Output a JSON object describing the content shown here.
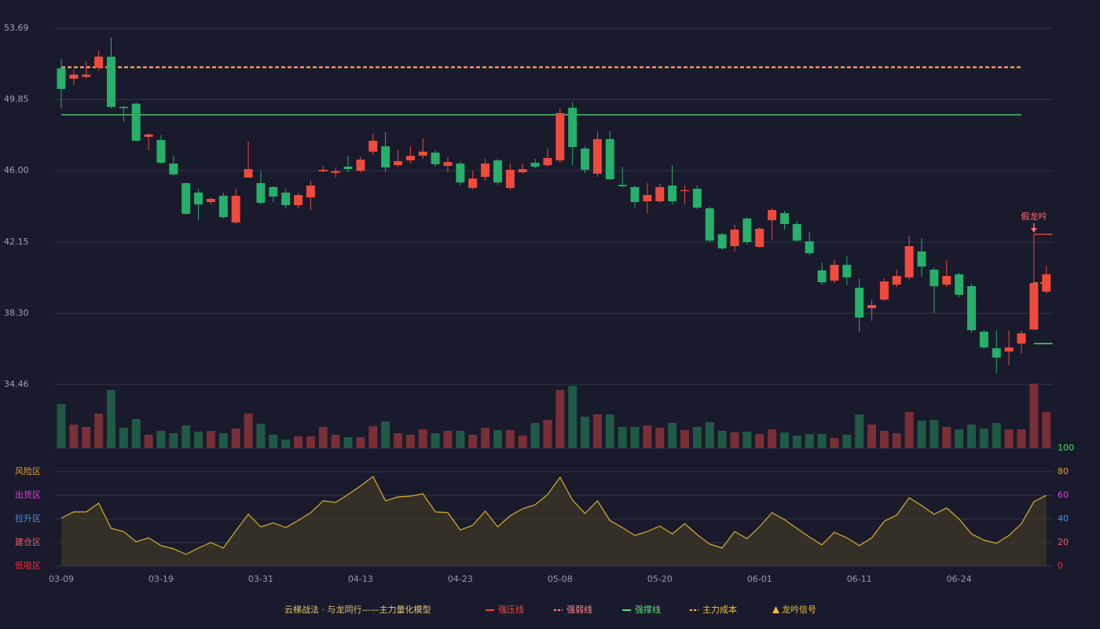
{
  "chart_data": {
    "type": "candlestick",
    "categories": [
      "03-09",
      null,
      null,
      null,
      null,
      null,
      null,
      null,
      "03-19",
      null,
      null,
      null,
      null,
      null,
      null,
      null,
      "03-31",
      null,
      null,
      null,
      null,
      null,
      null,
      null,
      "04-13",
      null,
      null,
      null,
      null,
      null,
      null,
      null,
      "04-23",
      null,
      null,
      null,
      null,
      null,
      null,
      null,
      "05-08",
      null,
      null,
      null,
      null,
      null,
      null,
      null,
      "05-20",
      null,
      null,
      null,
      null,
      null,
      null,
      null,
      "06-01",
      null,
      null,
      null,
      null,
      null,
      null,
      null,
      "06-11",
      null,
      null,
      null,
      null,
      null,
      null,
      null,
      "06-24",
      null,
      null,
      null,
      null,
      null,
      null,
      null
    ],
    "open": [
      51.53,
      50.97,
      51.07,
      51.57,
      52.16,
      49.45,
      49.62,
      47.83,
      47.66,
      46.39,
      45.33,
      44.82,
      44.31,
      44.65,
      43.21,
      45.63,
      45.33,
      45.12,
      44.82,
      44.14,
      44.56,
      45.97,
      45.88,
      46.22,
      46.0,
      47.03,
      47.32,
      46.3,
      46.56,
      46.81,
      46.98,
      46.26,
      46.39,
      45.07,
      45.67,
      46.56,
      45.07,
      45.92,
      46.43,
      46.3,
      46.56,
      49.4,
      47.2,
      45.84,
      47.71,
      45.24,
      45.12,
      44.35,
      44.35,
      45.2,
      44.9,
      45.03,
      43.97,
      42.57,
      41.93,
      43.42,
      41.89,
      43.33,
      43.71,
      43.12,
      42.19,
      40.62,
      40.07,
      40.92,
      39.68,
      38.58,
      39.04,
      39.85,
      40.24,
      41.64,
      40.66,
      39.85,
      40.41,
      39.77,
      37.31,
      36.42,
      36.24,
      36.67,
      37.43,
      39.47
    ],
    "high": [
      52.03,
      51.48,
      51.91,
      52.5,
      53.18,
      49.49,
      49.7,
      48.04,
      47.92,
      46.81,
      45.37,
      45.03,
      44.56,
      44.82,
      45.03,
      47.58,
      45.97,
      45.16,
      45.03,
      44.82,
      45.46,
      46.26,
      46.18,
      46.81,
      46.77,
      48.0,
      48.09,
      47.11,
      47.32,
      47.75,
      47.11,
      46.73,
      46.52,
      45.97,
      46.64,
      46.64,
      46.39,
      46.39,
      46.64,
      47.2,
      49.4,
      49.7,
      47.32,
      48.13,
      48.13,
      46.22,
      45.2,
      45.33,
      45.29,
      46.3,
      45.2,
      45.2,
      44.06,
      42.65,
      43.08,
      43.5,
      42.95,
      43.97,
      43.84,
      43.29,
      42.7,
      41.04,
      41.21,
      41.38,
      40.19,
      39.04,
      40.19,
      40.66,
      42.48,
      42.36,
      40.79,
      41.17,
      40.49,
      39.89,
      37.39,
      37.39,
      37.39,
      37.39,
      42.57,
      40.87
    ],
    "low": [
      49.36,
      50.63,
      50.97,
      51.4,
      49.36,
      48.64,
      47.58,
      47.11,
      46.39,
      45.75,
      43.63,
      43.33,
      44.18,
      43.42,
      43.12,
      45.63,
      44.18,
      44.31,
      43.97,
      43.97,
      43.89,
      45.92,
      45.63,
      45.92,
      45.88,
      46.86,
      45.92,
      46.22,
      46.39,
      46.64,
      46.22,
      45.92,
      45.2,
      44.99,
      45.46,
      45.24,
      44.95,
      45.84,
      46.13,
      46.22,
      46.43,
      46.3,
      45.88,
      45.67,
      45.5,
      45.12,
      44.01,
      43.67,
      44.27,
      44.18,
      44.18,
      43.93,
      42.15,
      41.72,
      41.64,
      42.02,
      41.85,
      42.27,
      42.82,
      42.19,
      41.43,
      39.85,
      39.94,
      39.81,
      37.31,
      37.9,
      38.96,
      39.72,
      40.11,
      40.28,
      38.3,
      39.72,
      39.17,
      37.26,
      36.37,
      35.06,
      35.48,
      36.12,
      37.39,
      39.34
    ],
    "close": [
      50.42,
      51.19,
      51.19,
      52.16,
      49.45,
      49.38,
      47.62,
      47.96,
      46.43,
      45.8,
      43.67,
      44.18,
      44.48,
      43.5,
      44.65,
      46.09,
      44.27,
      44.61,
      44.14,
      44.69,
      45.2,
      46.05,
      45.97,
      46.09,
      46.6,
      47.62,
      46.18,
      46.52,
      46.81,
      47.03,
      46.35,
      46.47,
      45.37,
      45.58,
      46.39,
      45.37,
      46.05,
      46.09,
      46.22,
      46.69,
      49.11,
      47.28,
      46.05,
      47.71,
      45.54,
      45.16,
      44.31,
      44.69,
      45.12,
      44.35,
      44.95,
      44.01,
      42.23,
      41.81,
      42.82,
      42.15,
      42.87,
      43.88,
      43.12,
      42.23,
      41.55,
      39.98,
      40.92,
      40.24,
      38.07,
      38.75,
      40.02,
      40.32,
      41.93,
      40.83,
      39.77,
      40.32,
      39.3,
      37.39,
      36.46,
      35.91,
      36.46,
      37.22,
      39.94,
      40.41
    ],
    "up_color": "#f04a3c",
    "down_color": "#26b06a",
    "ylim": [
      34.46,
      53.69
    ],
    "yticks": [
      34.46,
      {
        "value": 38.3,
        "label": "38.30"
      },
      42.15,
      {
        "value": 46,
        "label": "46.00"
      },
      49.85,
      53.69
    ],
    "grid": true,
    "levels": [
      {
        "name": "强压线",
        "color": "#f04a3c",
        "style": "solid",
        "segments": [
          {
            "from": 78,
            "to": 79,
            "value": 42.57
          }
        ]
      },
      {
        "name": "强弱线",
        "color": "#ff8a8a",
        "style": "dashed",
        "segments": [
          {
            "from": 0,
            "to": 77,
            "value": 51.61
          }
        ]
      },
      {
        "name": "强撑线",
        "color": "#5be07a",
        "style": "solid",
        "segments": [
          {
            "from": 0,
            "to": 77,
            "value": 49.02
          },
          {
            "from": 78,
            "to": 79,
            "value": 36.67
          }
        ]
      },
      {
        "name": "主力成本",
        "color": "#f0c030",
        "style": "dashed",
        "segments": [
          {
            "from": 0,
            "to": 77,
            "value": 51.57
          },
          {
            "from": 78,
            "to": 79,
            "value": 39.94
          }
        ]
      }
    ],
    "signal": {
      "name": "龙吟信号",
      "color": "#e8c040"
    },
    "annotation": {
      "text": "假龙吟",
      "index": 78,
      "color": "#ff6b6b"
    },
    "legend_title": "云梯战法 · 与龙同行——主力量化模型",
    "volume": {
      "values": [
        56,
        30,
        27,
        44,
        74,
        26,
        37,
        17,
        22,
        19,
        29,
        21,
        22,
        19,
        25,
        44,
        31,
        17,
        11,
        15,
        15,
        27,
        17,
        14,
        14,
        28,
        34,
        19,
        17,
        24,
        19,
        22,
        22,
        17,
        26,
        23,
        23,
        16,
        32,
        36,
        74,
        79,
        40,
        43,
        43,
        27,
        27,
        29,
        26,
        32,
        23,
        27,
        33,
        22,
        20,
        21,
        18,
        24,
        20,
        16,
        18,
        18,
        13,
        17,
        43,
        30,
        22,
        19,
        46,
        35,
        36,
        27,
        24,
        30,
        25,
        32,
        24,
        24,
        82,
        46
      ],
      "ylim": [
        0,
        82
      ],
      "up_color": "#7a2e36",
      "down_color": "#1f5a45"
    },
    "indicator": {
      "values": [
        40.7,
        46,
        46,
        53.3,
        32,
        29.3,
        20.7,
        24,
        17.3,
        14.7,
        10,
        15.3,
        20,
        15.3,
        30,
        44,
        33.3,
        36.7,
        32.7,
        38.7,
        45.3,
        55.3,
        54,
        60.7,
        68,
        76,
        55.3,
        58.7,
        59.3,
        61.3,
        46,
        45.3,
        30.7,
        34.7,
        46.7,
        33.3,
        42.7,
        48.7,
        52,
        60.7,
        75.3,
        56,
        44.7,
        55.3,
        38.7,
        32.7,
        26,
        29.3,
        34,
        27.3,
        36,
        26.7,
        18.7,
        15.3,
        29.3,
        23.3,
        33.3,
        45.3,
        39.3,
        32,
        24.7,
        18,
        28.7,
        24,
        17.3,
        24,
        38,
        43.3,
        58,
        51.3,
        44,
        49.3,
        40,
        27.3,
        22,
        19.3,
        26,
        36,
        54.7,
        60
      ],
      "color": "#d8b02c",
      "ylim": [
        0,
        100
      ],
      "yticks": [
        0,
        20,
        40,
        60,
        80,
        100
      ],
      "ytick_colors": [
        "#f03040",
        "#f06060",
        "#4a90f0",
        "#e040e0",
        "#e8a030",
        "#40e060"
      ],
      "zones": [
        {
          "label": "低吸区",
          "value": 0,
          "color": "#f03040"
        },
        {
          "label": "建仓区",
          "value": 20,
          "color": "#f06060"
        },
        {
          "label": "拉升区",
          "value": 40,
          "color": "#4a90f0"
        },
        {
          "label": "出货区",
          "value": 60,
          "color": "#e040e0"
        },
        {
          "label": "风险区",
          "value": 80,
          "color": "#e8a030"
        }
      ]
    }
  }
}
